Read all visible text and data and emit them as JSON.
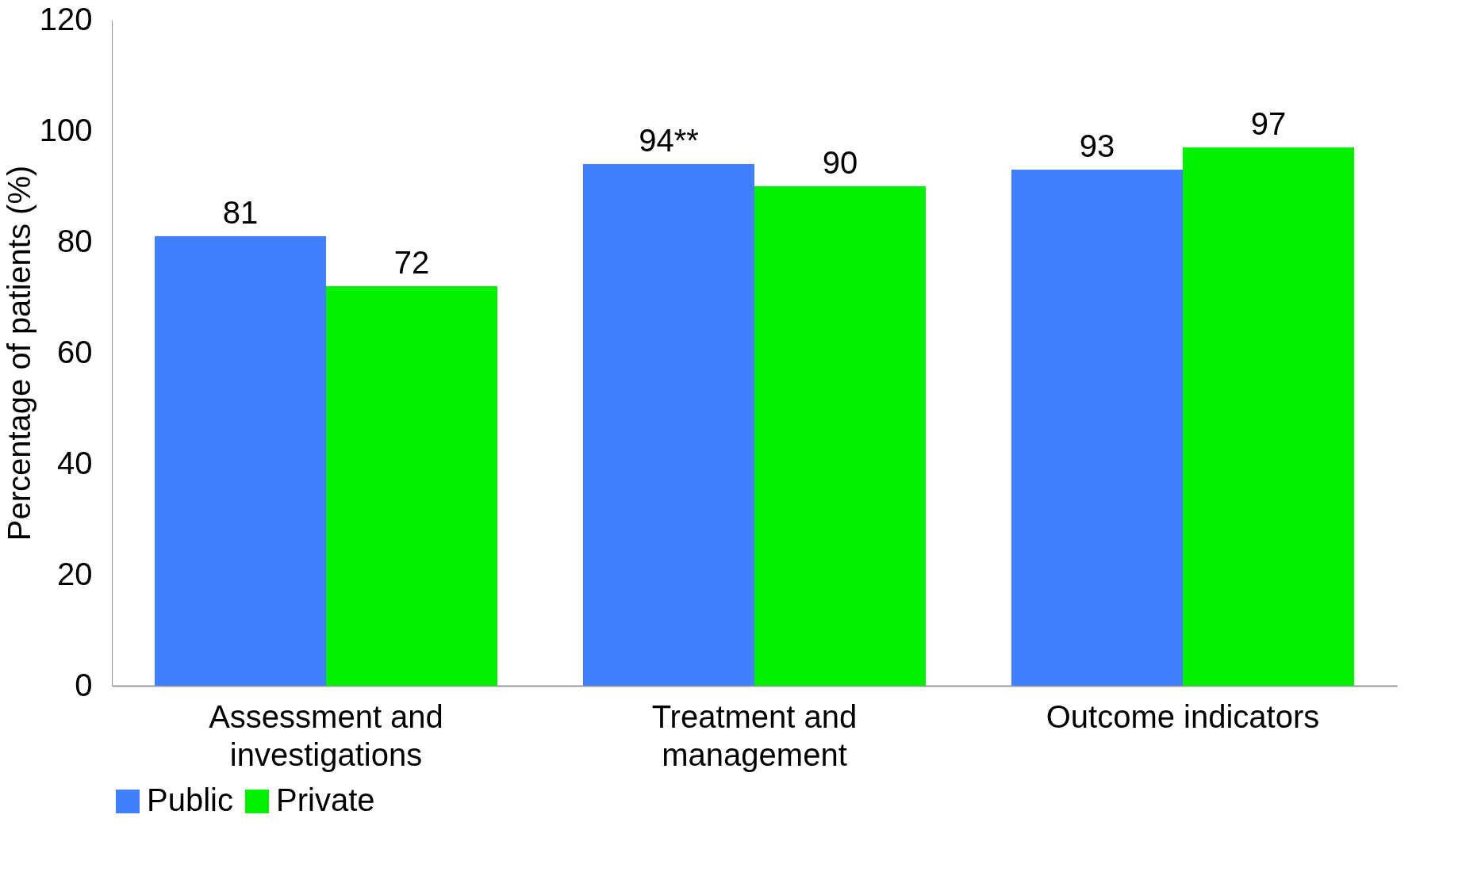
{
  "chart_data": {
    "type": "bar",
    "ylabel": "Percentage of patients (%)",
    "categories": [
      "Assessment and investigations",
      "Treatment and management",
      "Outcome indicators"
    ],
    "series": [
      {
        "name": "Public",
        "color": "#4080ff",
        "values": [
          81,
          94,
          93
        ],
        "value_labels": [
          "81",
          "94**",
          "93"
        ]
      },
      {
        "name": "Private",
        "color": "#00f000",
        "values": [
          72,
          90,
          97
        ],
        "value_labels": [
          "72",
          "90",
          "97"
        ]
      }
    ],
    "ylim": [
      0,
      120
    ],
    "yticks": [
      0,
      20,
      40,
      60,
      80,
      100,
      120
    ],
    "grid": false,
    "legend": "bottom"
  }
}
